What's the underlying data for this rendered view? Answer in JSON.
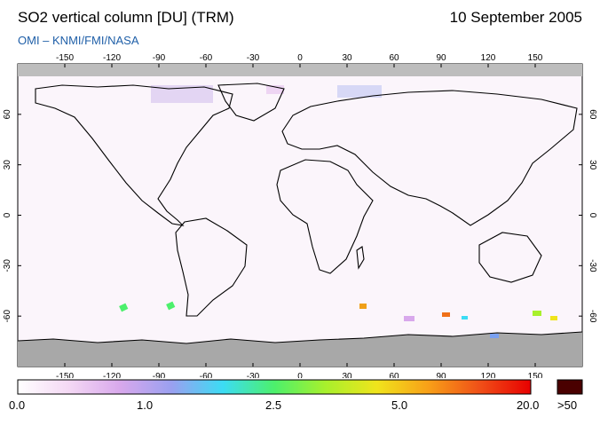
{
  "header": {
    "title": "SO2 vertical column [DU] (TRM)",
    "date": "10 September 2005",
    "credit": "OMI  –  KNMI/FMI/NASA"
  },
  "map": {
    "lon_ticks": [
      "-150",
      "-120",
      "-90",
      "-60",
      "-30",
      "0",
      "30",
      "60",
      "90",
      "120",
      "150"
    ],
    "lat_ticks": [
      "60",
      "30",
      "0",
      "-30",
      "-60"
    ],
    "colors": {
      "ocean": "#ffffff",
      "land_outline": "#000000",
      "nodata": "#a8a8a8",
      "tint": "#f3e8f5"
    }
  },
  "colorbar": {
    "labels": [
      "0.0",
      "1.0",
      "2.5",
      "5.0",
      "20.0",
      ">50"
    ],
    "stops": [
      "#ffffff",
      "#f4d8f4",
      "#d8a8ec",
      "#9aa0f0",
      "#3cdcf4",
      "#4cf06c",
      "#a8f02c",
      "#f0e41c",
      "#f8a018",
      "#f05018",
      "#e80000"
    ],
    "overflow_color": "#4a0000"
  }
}
